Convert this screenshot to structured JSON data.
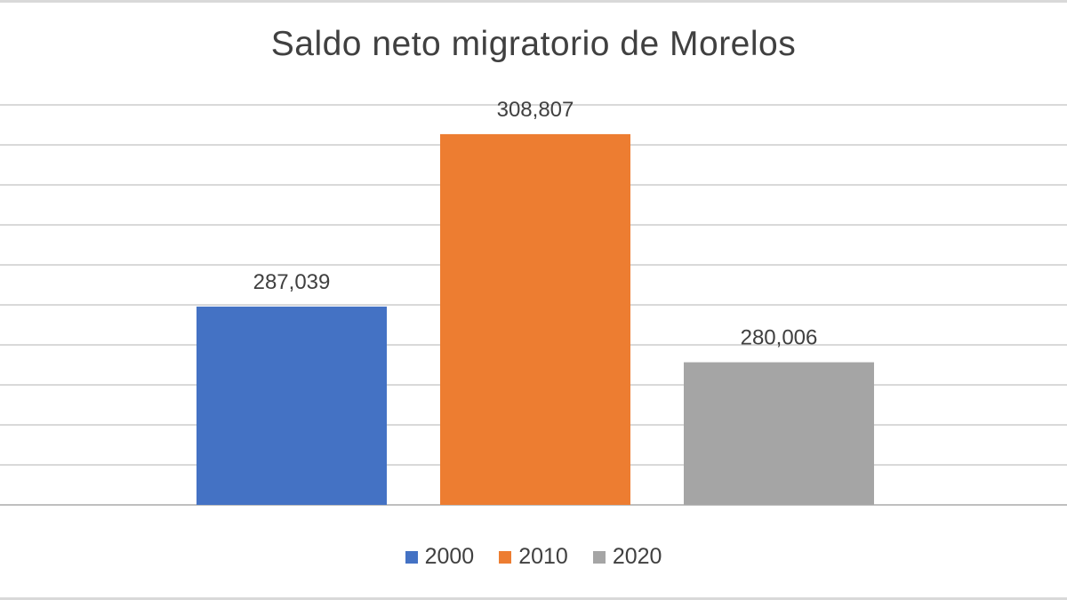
{
  "chart_data": {
    "type": "bar",
    "title": "Saldo neto migratorio de Morelos",
    "categories": [
      "2000",
      "2010",
      "2020"
    ],
    "values": [
      287039,
      308807,
      280006
    ],
    "data_labels": [
      "287,039",
      "308,807",
      "280,006"
    ],
    "colors": [
      "#4472c4",
      "#ed7d31",
      "#a5a5a5"
    ],
    "legend": {
      "position": "bottom",
      "entries": [
        "2000",
        "2010",
        "2020"
      ]
    },
    "ylim": [
      262000,
      312500
    ],
    "grid": true,
    "xlabel": "",
    "ylabel": ""
  }
}
